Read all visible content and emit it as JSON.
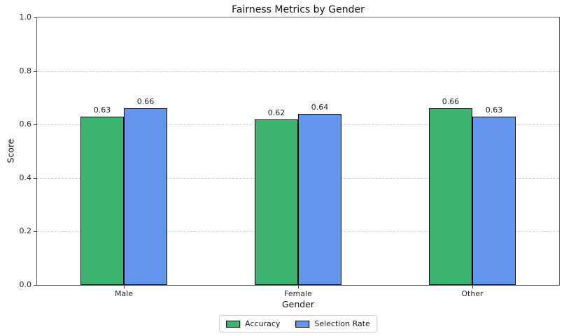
{
  "chart_data": {
    "type": "bar",
    "title": "Fairness Metrics by Gender",
    "xlabel": "Gender",
    "ylabel": "Score",
    "categories": [
      "Male",
      "Female",
      "Other"
    ],
    "series": [
      {
        "name": "Accuracy",
        "color": "#3cb371",
        "values": [
          0.63,
          0.62,
          0.66
        ],
        "labels": [
          "0.63",
          "0.62",
          "0.66"
        ]
      },
      {
        "name": "Selection Rate",
        "color": "#6495ed",
        "values": [
          0.66,
          0.64,
          0.63
        ],
        "labels": [
          "0.66",
          "0.64",
          "0.63"
        ]
      }
    ],
    "ylim": [
      0.0,
      1.0
    ],
    "yticks": [
      0.0,
      0.2,
      0.4,
      0.6,
      0.8,
      1.0
    ],
    "ytick_labels": [
      "0.0",
      "0.2",
      "0.4",
      "0.6",
      "0.8",
      "1.0"
    ],
    "grid": {
      "axis": "y",
      "style": "dashed",
      "color": "#d0d0d0"
    },
    "bar_edge_color": "#000000",
    "bar_group_width": 0.5,
    "value_labels_shown": true,
    "legend_position": "lower-center"
  }
}
